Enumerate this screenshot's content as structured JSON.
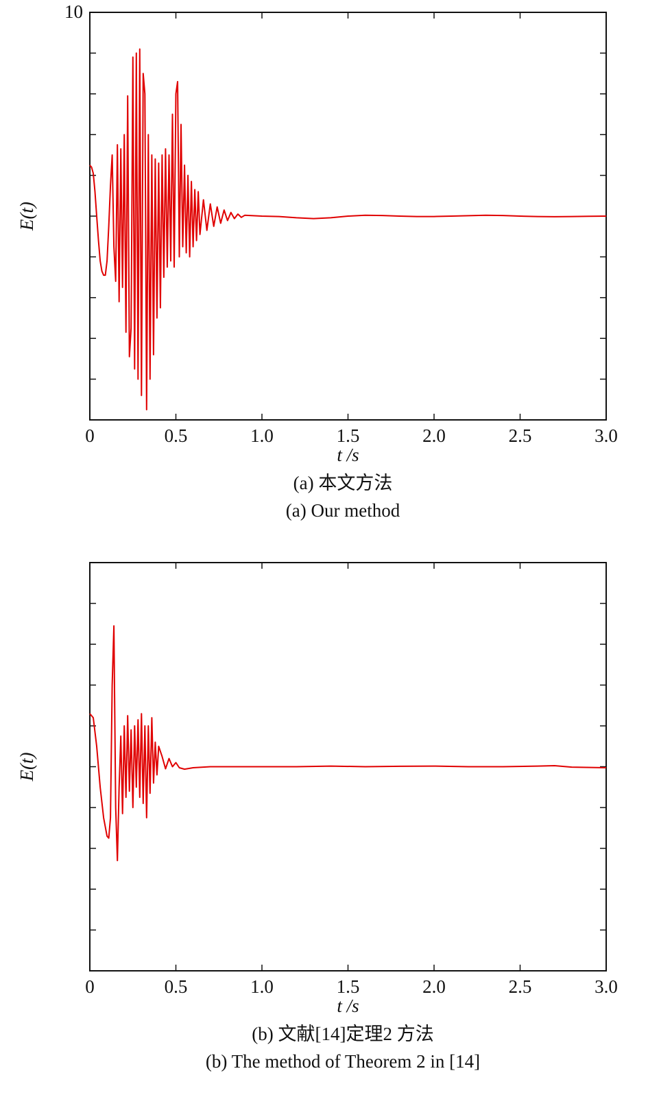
{
  "chart_data": [
    {
      "type": "line",
      "ylabel": "E(t)",
      "xlabel": "t /s",
      "captions": [
        "(a) 本文方法",
        "(a) Our method"
      ],
      "xlim": [
        0,
        3
      ],
      "ylim": [
        -10,
        10
      ],
      "xticks": [
        0,
        0.5,
        {
          "value": 1,
          "label": "1.0"
        },
        1.5,
        {
          "value": 2,
          "label": "2.0"
        },
        2.5,
        {
          "value": 3,
          "label": "3.0"
        }
      ],
      "yticks": [
        {
          "value": -10,
          "label": null
        },
        {
          "value": -8,
          "label": null
        },
        {
          "value": -6,
          "label": null
        },
        {
          "value": -4,
          "label": null
        },
        {
          "value": -2,
          "label": null
        },
        {
          "value": 0,
          "label": null
        },
        {
          "value": 2,
          "label": null
        },
        {
          "value": 4,
          "label": null
        },
        {
          "value": 6,
          "label": null
        },
        {
          "value": 8,
          "label": null
        },
        10
      ],
      "series": [
        {
          "color": "#e00000",
          "x": [
            0,
            0.01,
            0.02,
            0.03,
            0.04,
            0.05,
            0.06,
            0.07,
            0.08,
            0.09,
            0.1,
            0.11,
            0.12,
            0.13,
            0.14,
            0.15,
            0.16,
            0.17,
            0.18,
            0.19,
            0.2,
            0.21,
            0.22,
            0.23,
            0.24,
            0.25,
            0.26,
            0.27,
            0.28,
            0.29,
            0.3,
            0.31,
            0.32,
            0.33,
            0.34,
            0.35,
            0.36,
            0.37,
            0.38,
            0.39,
            0.4,
            0.41,
            0.42,
            0.43,
            0.44,
            0.45,
            0.46,
            0.47,
            0.48,
            0.49,
            0.5,
            0.51,
            0.52,
            0.53,
            0.54,
            0.55,
            0.56,
            0.57,
            0.58,
            0.59,
            0.6,
            0.61,
            0.62,
            0.63,
            0.64,
            0.66,
            0.68,
            0.7,
            0.72,
            0.74,
            0.76,
            0.78,
            0.8,
            0.82,
            0.84,
            0.86,
            0.88,
            0.9,
            0.95,
            1.0,
            1.1,
            1.2,
            1.3,
            1.4,
            1.5,
            1.6,
            1.7,
            1.8,
            1.9,
            2.0,
            2.1,
            2.2,
            2.3,
            2.4,
            2.5,
            2.6,
            2.7,
            2.8,
            2.9,
            3.0
          ],
          "values": [
            2.5,
            2.4,
            2.1,
            1.2,
            0,
            -1.2,
            -2.2,
            -2.7,
            -2.9,
            -2.9,
            -2.2,
            -0.5,
            1.5,
            3.0,
            -1.5,
            -3.2,
            3.5,
            -4.2,
            3.3,
            -3.5,
            4.0,
            -5.7,
            5.9,
            -6.9,
            -5.5,
            7.8,
            -7.5,
            8.0,
            -8.0,
            8.2,
            -8.8,
            7.0,
            6.0,
            -9.5,
            4.0,
            -8.0,
            3.0,
            -6.8,
            2.8,
            -5.0,
            2.6,
            -4.5,
            3.0,
            -3.0,
            3.3,
            -2.5,
            3.0,
            -2.2,
            5.0,
            -2.5,
            6.0,
            6.6,
            -2.0,
            4.5,
            -1.5,
            2.5,
            -1.8,
            2.0,
            -2.0,
            1.7,
            -1.5,
            1.3,
            -1.2,
            1.2,
            -0.9,
            0.8,
            -0.7,
            0.6,
            -0.5,
            0.45,
            -0.35,
            0.3,
            -0.22,
            0.18,
            -0.12,
            0.1,
            -0.06,
            0.04,
            0.02,
            0,
            -0.02,
            -0.08,
            -0.12,
            -0.08,
            0,
            0.04,
            0.03,
            0,
            -0.02,
            -0.02,
            0,
            0.02,
            0.04,
            0.03,
            0,
            -0.02,
            -0.03,
            -0.02,
            -0.01,
            0
          ]
        }
      ]
    },
    {
      "type": "line",
      "ylabel": "E(t)",
      "xlabel": "t /s",
      "captions": [
        "(b) 文献[14]定理2 方法",
        "(b) The method of Theorem 2 in [14]"
      ],
      "xlim": [
        0,
        3
      ],
      "ylim": [
        -10,
        10
      ],
      "xticks": [
        0,
        0.5,
        {
          "value": 1,
          "label": "1.0"
        },
        1.5,
        {
          "value": 2,
          "label": "2.0"
        },
        2.5,
        {
          "value": 3,
          "label": "3.0"
        }
      ],
      "yticks": [
        {
          "value": -10,
          "label": null
        },
        {
          "value": -8,
          "label": null
        },
        {
          "value": -6,
          "label": null
        },
        {
          "value": -4,
          "label": null
        },
        {
          "value": -2,
          "label": null
        },
        {
          "value": 0,
          "label": null
        },
        {
          "value": 2,
          "label": null
        },
        {
          "value": 4,
          "label": null
        },
        {
          "value": 6,
          "label": null
        },
        {
          "value": 8,
          "label": null
        },
        {
          "value": 10,
          "label": null
        }
      ],
      "series": [
        {
          "color": "#e00000",
          "x": [
            0,
            0.02,
            0.04,
            0.06,
            0.08,
            0.1,
            0.11,
            0.12,
            0.13,
            0.14,
            0.15,
            0.16,
            0.17,
            0.18,
            0.19,
            0.2,
            0.21,
            0.22,
            0.23,
            0.24,
            0.25,
            0.26,
            0.27,
            0.28,
            0.29,
            0.3,
            0.31,
            0.32,
            0.33,
            0.34,
            0.35,
            0.36,
            0.37,
            0.38,
            0.39,
            0.4,
            0.42,
            0.44,
            0.46,
            0.48,
            0.5,
            0.52,
            0.55,
            0.6,
            0.7,
            0.8,
            1.0,
            1.2,
            1.4,
            1.6,
            1.8,
            2.0,
            2.2,
            2.4,
            2.6,
            2.7,
            2.8,
            3.0
          ],
          "values": [
            2.6,
            2.4,
            1.0,
            -1.0,
            -2.5,
            -3.4,
            -3.5,
            -2.5,
            4.0,
            6.9,
            -2.0,
            -4.6,
            -1.0,
            1.5,
            -2.3,
            2.0,
            -1.5,
            2.5,
            -1.2,
            1.8,
            -2.0,
            2.0,
            -1.0,
            2.3,
            -1.5,
            2.6,
            -1.8,
            2.0,
            -2.5,
            2.0,
            -1.3,
            2.4,
            -0.8,
            1.2,
            -0.4,
            1.0,
            0.5,
            -0.1,
            0.4,
            0,
            0.2,
            -0.05,
            -0.12,
            -0.05,
            0,
            0,
            0,
            0,
            0.03,
            0,
            0.02,
            0.03,
            0,
            0,
            0.03,
            0.05,
            -0.02,
            -0.05
          ]
        }
      ]
    }
  ]
}
